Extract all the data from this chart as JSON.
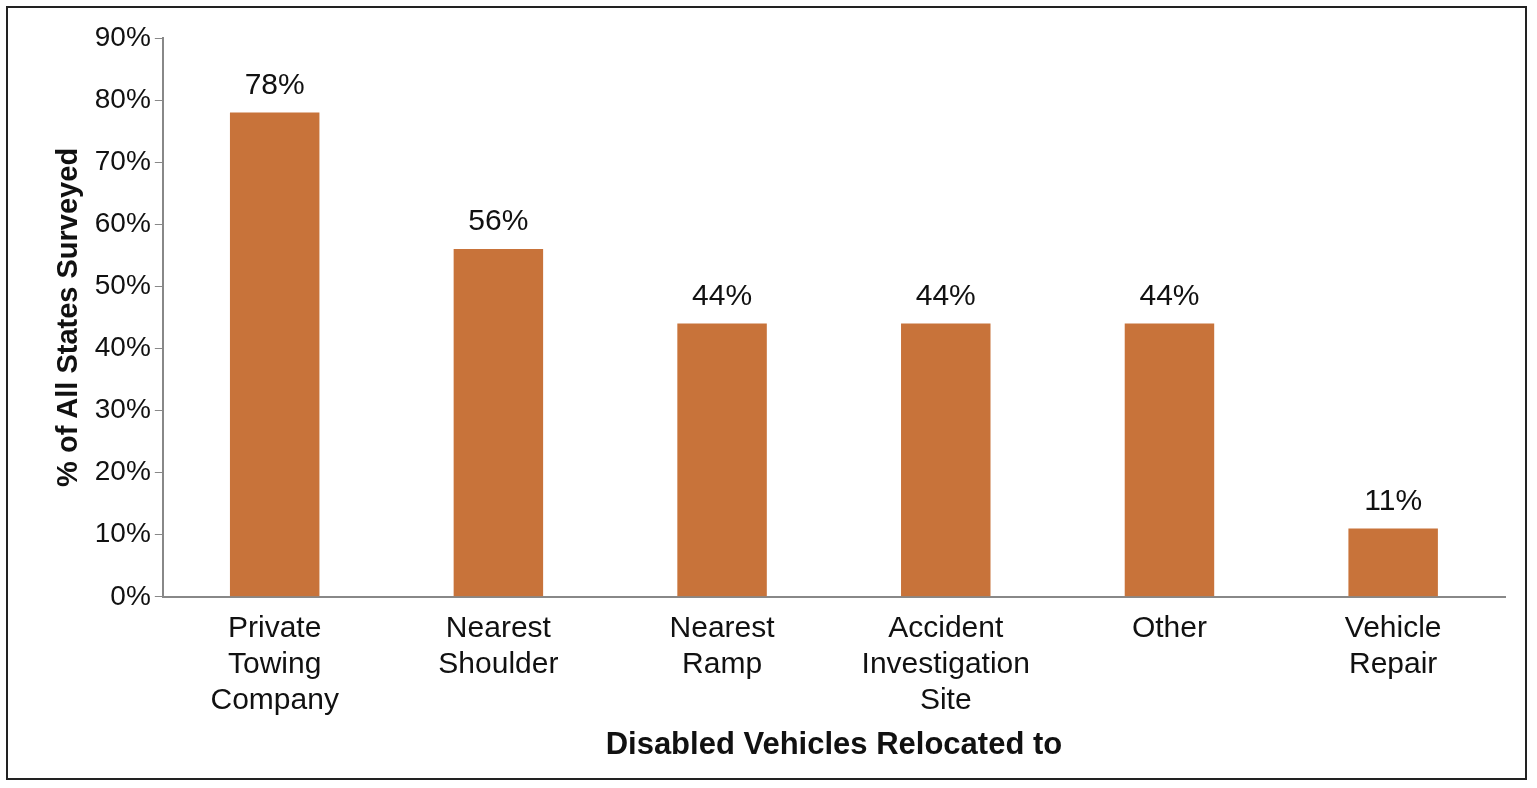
{
  "chart_data": {
    "type": "bar",
    "xlabel": "Disabled Vehicles Relocated to",
    "ylabel": "% of All States Surveyed",
    "categories": [
      "Private Towing Company",
      "Nearest Shoulder",
      "Nearest Ramp",
      "Accident Investigation Site",
      "Other",
      "Vehicle Repair"
    ],
    "values": [
      78,
      56,
      44,
      44,
      44,
      11
    ],
    "value_labels": [
      "78%",
      "56%",
      "44%",
      "44%",
      "44%",
      "11%"
    ],
    "color": "#c8733a",
    "ylim": [
      0,
      90
    ],
    "yticks": [
      {
        "value": 0,
        "label": "0%"
      },
      {
        "value": 10,
        "label": "10%"
      },
      {
        "value": 20,
        "label": "20%"
      },
      {
        "value": 30,
        "label": "30%"
      },
      {
        "value": 40,
        "label": "40%"
      },
      {
        "value": 50,
        "label": "50%"
      },
      {
        "value": 60,
        "label": "60%"
      },
      {
        "value": 70,
        "label": "70%"
      },
      {
        "value": 80,
        "label": "80%"
      },
      {
        "value": 90,
        "label": "90%"
      }
    ],
    "grid": false,
    "legend": false
  }
}
